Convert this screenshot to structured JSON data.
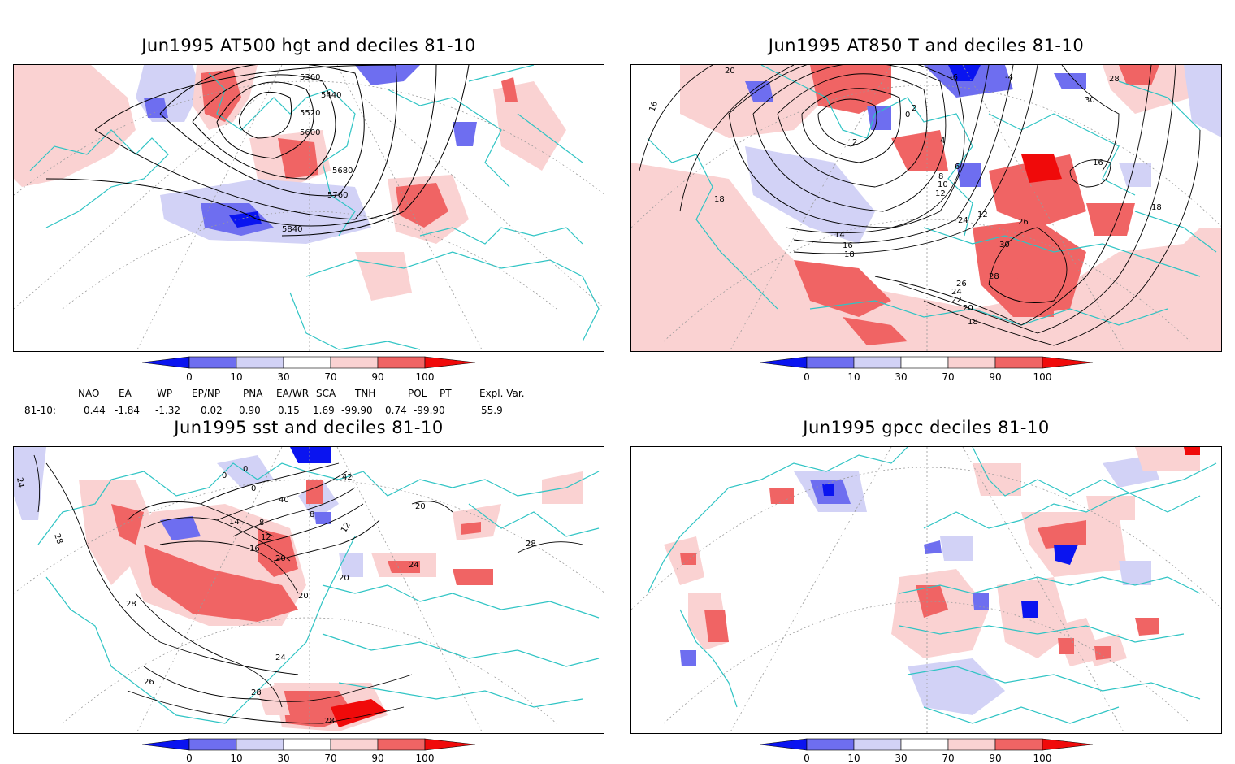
{
  "panels": [
    {
      "id": "p1",
      "title": "Jun1995 AT500 hgt and deciles 81-10",
      "contour_labels": [
        "5360",
        "5440",
        "5520",
        "5600",
        "5680",
        "5760",
        "5840"
      ]
    },
    {
      "id": "p2",
      "title": "Jun1995 AT850 T and deciles 81-10",
      "contour_labels": [
        "20",
        "16",
        "18",
        "-4",
        "-6",
        "0",
        "2",
        "2",
        "4",
        "6",
        "8",
        "10",
        "12",
        "14",
        "16",
        "18",
        "12",
        "24",
        "26",
        "30",
        "28",
        "26",
        "24",
        "22",
        "20",
        "18",
        "28",
        "30",
        "16",
        "18"
      ]
    },
    {
      "id": "p3",
      "title": "Jun1995 sst and deciles 81-10",
      "contour_labels": [
        "24",
        "28",
        "0",
        "0",
        "0",
        "42",
        "40",
        "8",
        "14",
        "8",
        "12",
        "16",
        "20",
        "20",
        "20",
        "24",
        "28",
        "28",
        "20",
        "24",
        "12",
        "28"
      ]
    },
    {
      "id": "p4",
      "title": "Jun1995 gpcc deciles 81-10",
      "contour_labels": []
    }
  ],
  "colorbar": {
    "ticks": [
      "0",
      "10",
      "30",
      "70",
      "90",
      "100"
    ],
    "colors": {
      "dark_blue": "#0a14f0",
      "mid_blue": "#6e6ef0",
      "light_blue": "#d2d2f6",
      "white": "#ffffff",
      "light_red": "#fad2d2",
      "mid_red": "#f06464",
      "dark_red": "#f00a0a"
    }
  },
  "indices": {
    "headers": [
      "NAO",
      "EA",
      "WP",
      "EP/NP",
      "PNA",
      "EA/WR",
      "SCA",
      "TNH",
      "POL",
      "PT",
      "Expl. Var."
    ],
    "row_label": "81-10:",
    "values": [
      "0.44",
      "-1.84",
      "-1.32",
      "0.02",
      "0.90",
      "0.15",
      "1.69",
      "-99.90",
      "0.74",
      "-99.90",
      "55.9"
    ]
  },
  "colors": {
    "coast": "#2fc4c4",
    "contour": "#000000",
    "grid": "#9a9a9a"
  }
}
